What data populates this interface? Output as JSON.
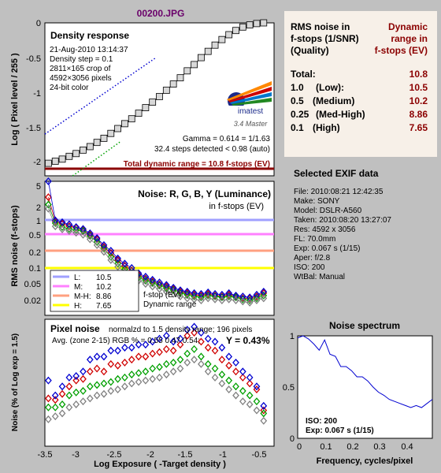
{
  "figure_title": "00200.JPG",
  "colors": {
    "background": "#c0c0c0",
    "plot_bg": "#ffffff",
    "title": "#6a006a",
    "dark_red": "#8b0000",
    "red": "#d00000",
    "green": "#00a000",
    "blue": "#0000d0",
    "gray": "#808080",
    "lum_L": "#a0a0ff",
    "lum_M": "#ff80ff",
    "lum_MH": "#ffa080",
    "lum_H": "#ffff00"
  },
  "density_panel": {
    "title": "Density response",
    "info_lines": [
      "21-Aug-2010 13:14:37",
      "Density step = 0.1",
      "2811×165 crop of",
      "4592×3056 pixels",
      "24-bit color"
    ],
    "logo": {
      "brand": "imatest",
      "version": "3.4  Master"
    },
    "gamma_text": "Gamma = 0.614 = 1/1.63",
    "steps_text": "32.4 steps detected < 0.98 (auto)",
    "dynamic_range_text": "Total dynamic range = 10.8 f-stops (EV)",
    "ylabel": "Log ( Pixel level / 255 )",
    "yticks": [
      "0",
      "-0.5",
      "-1",
      "-1.5",
      "-2"
    ]
  },
  "noise_panel": {
    "title": "Noise: R, G, B, Y (Luminance)",
    "subtitle": "in f-stops (EV)",
    "ylabel": "RMS noise (f-stops)",
    "yticks": [
      "5",
      "2",
      "1",
      "0.5",
      "0.2",
      "0.1",
      "0.05",
      "0.02"
    ],
    "legend": [
      {
        "key": "L:",
        "value": "10.5"
      },
      {
        "key": "M:",
        "value": "10.2"
      },
      {
        "key": "M-H:",
        "value": "8.86"
      },
      {
        "key": "H:",
        "value": "7.65"
      }
    ],
    "legend_note_1": "f-stop (EV)",
    "legend_note_2": "Dynamic range"
  },
  "pixel_noise_panel": {
    "title": "Pixel noise",
    "subtitle": "normalzd to 1.5 density range; 196 pixels",
    "avg_text": "Avg. (zone 2-15) RGB % = 0.55  0.47  0.54;",
    "y_text": "Y = 0.43%",
    "ylabel": "Noise (% of Log exp = 1.5)",
    "xlabel": "Log Exposure ( -Target density )",
    "xticks": [
      "-3.5",
      "-3",
      "-2.5",
      "-2",
      "-1.5",
      "-1",
      "-0.5"
    ]
  },
  "dr_table": {
    "header_left": [
      "RMS noise in",
      "f-stops (1/SNR)",
      "(Quality)"
    ],
    "header_right": [
      "Dynamic",
      "range in",
      "f-stops (EV)"
    ],
    "rows": [
      {
        "q": "Total:",
        "label": "",
        "v": "10.8"
      },
      {
        "q": "1.0",
        "label": "(Low):",
        "v": "10.5"
      },
      {
        "q": "0.5",
        "label": "(Medium)",
        "v": "10.2"
      },
      {
        "q": "0.25",
        "label": "(Med-High)",
        "v": "8.86"
      },
      {
        "q": "0.1",
        "label": "(High)",
        "v": "7.65"
      }
    ]
  },
  "exif": {
    "title": "Selected EXIF data",
    "lines": [
      "File:  2010:08:21 12:42:35",
      "Make:  SONY",
      "Model: DSLR-A560",
      "Taken: 2010:08:20 13:27:07",
      "Res:   4592 x 3056",
      "FL:  70.0mm",
      "Exp:  0.067 s  (1/15)",
      "Aper:  f/2.8",
      "ISO:  200",
      "WtBal: Manual"
    ]
  },
  "spectrum_panel": {
    "title": "Noise spectrum",
    "xlabel": "Frequency, cycles/pixel",
    "xticks": [
      "0",
      "0.1",
      "0.2",
      "0.3",
      "0.4"
    ],
    "yticks": [
      "1",
      "0.5",
      "0"
    ],
    "iso_text": "ISO:  200",
    "exp_text": "Exp:  0.067 s  (1/15)"
  },
  "chart_data": [
    {
      "type": "line",
      "title": "Density response",
      "ylabel": "Log ( Pixel level / 255 )",
      "xlim": [
        -3.5,
        -0.2
      ],
      "ylim": [
        -2.2,
        0
      ],
      "x": [
        -3.45,
        -3.35,
        -3.25,
        -3.15,
        -3.05,
        -2.95,
        -2.85,
        -2.75,
        -2.65,
        -2.55,
        -2.45,
        -2.35,
        -2.25,
        -2.15,
        -2.05,
        -1.95,
        -1.85,
        -1.75,
        -1.65,
        -1.55,
        -1.45,
        -1.35,
        -1.25,
        -1.15,
        -1.05,
        -0.95,
        -0.85,
        -0.75,
        -0.65,
        -0.55,
        -0.45,
        -0.35
      ],
      "series": [
        {
          "y": [
            -2.02,
            -1.99,
            -1.96,
            -1.92,
            -1.88,
            -1.83,
            -1.78,
            -1.72,
            -1.66,
            -1.59,
            -1.52,
            -1.45,
            -1.38,
            -1.3,
            -1.22,
            -1.14,
            -1.06,
            -0.97,
            -0.88,
            -0.79,
            -0.69,
            -0.6,
            -0.5,
            -0.41,
            -0.32,
            -0.24,
            -0.17,
            -0.11,
            -0.06,
            -0.03,
            -0.01,
            0.0
          ]
        }
      ]
    },
    {
      "type": "line",
      "title": "Noise: R, G, B, Y (Luminance)",
      "ylabel": "RMS noise (f-stops)",
      "yscale": "log",
      "ylim": [
        0.01,
        5
      ],
      "x": [
        -3.45,
        -3.35,
        -3.25,
        -3.15,
        -3.05,
        -2.95,
        -2.85,
        -2.75,
        -2.65,
        -2.55,
        -2.45,
        -2.35,
        -2.25,
        -2.15,
        -2.05,
        -1.95,
        -1.85,
        -1.75,
        -1.65,
        -1.55,
        -1.45,
        -1.35,
        -1.25,
        -1.15,
        -1.05,
        -0.95,
        -0.85,
        -0.75,
        -0.65,
        -0.55,
        -0.45,
        -0.35
      ],
      "series": [
        {
          "name": "R",
          "y": [
            2.4,
            0.78,
            0.7,
            0.62,
            0.58,
            0.52,
            0.42,
            0.34,
            0.24,
            0.18,
            0.13,
            0.1,
            0.08,
            0.065,
            0.055,
            0.048,
            0.042,
            0.038,
            0.034,
            0.03,
            0.028,
            0.026,
            0.025,
            0.027,
            0.025,
            0.024,
            0.026,
            0.024,
            0.022,
            0.022,
            0.024,
            0.028
          ]
        },
        {
          "name": "G",
          "y": [
            1.7,
            0.72,
            0.6,
            0.55,
            0.52,
            0.5,
            0.4,
            0.3,
            0.22,
            0.15,
            0.11,
            0.085,
            0.07,
            0.058,
            0.05,
            0.045,
            0.04,
            0.035,
            0.032,
            0.028,
            0.026,
            0.024,
            0.023,
            0.025,
            0.024,
            0.023,
            0.024,
            0.023,
            0.021,
            0.02,
            0.022,
            0.025
          ]
        },
        {
          "name": "B",
          "y": [
            5.0,
            0.82,
            0.75,
            0.68,
            0.6,
            0.55,
            0.45,
            0.36,
            0.26,
            0.2,
            0.14,
            0.11,
            0.09,
            0.07,
            0.06,
            0.052,
            0.046,
            0.041,
            0.036,
            0.032,
            0.03,
            0.028,
            0.027,
            0.029,
            0.027,
            0.026,
            0.028,
            0.025,
            0.024,
            0.023,
            0.026,
            0.03
          ]
        },
        {
          "name": "Y",
          "y": [
            1.4,
            0.62,
            0.54,
            0.5,
            0.46,
            0.42,
            0.34,
            0.26,
            0.19,
            0.13,
            0.095,
            0.075,
            0.06,
            0.05,
            0.043,
            0.038,
            0.034,
            0.03,
            0.027,
            0.024,
            0.022,
            0.021,
            0.02,
            0.022,
            0.021,
            0.02,
            0.021,
            0.02,
            0.019,
            0.018,
            0.02,
            0.022
          ]
        }
      ]
    },
    {
      "type": "line",
      "title": "Pixel noise",
      "xlabel": "Log Exposure ( -Target density )",
      "ylabel": "Noise (% of Log exp = 1.5)",
      "xlim": [
        -3.5,
        -0.2
      ],
      "ylim": [
        0,
        0.85
      ],
      "x": [
        -3.45,
        -3.35,
        -3.25,
        -3.15,
        -3.05,
        -2.95,
        -2.85,
        -2.75,
        -2.65,
        -2.55,
        -2.45,
        -2.35,
        -2.25,
        -2.15,
        -2.05,
        -1.95,
        -1.85,
        -1.75,
        -1.65,
        -1.55,
        -1.45,
        -1.35,
        -1.25,
        -1.15,
        -1.05,
        -0.95,
        -0.85,
        -0.75,
        -0.65,
        -0.55,
        -0.45,
        -0.35
      ],
      "series": [
        {
          "name": "R",
          "y": [
            0.32,
            0.31,
            0.35,
            0.4,
            0.44,
            0.45,
            0.5,
            0.52,
            0.5,
            0.55,
            0.54,
            0.56,
            0.58,
            0.6,
            0.6,
            0.62,
            0.63,
            0.65,
            0.64,
            0.68,
            0.74,
            0.76,
            0.7,
            0.66,
            0.64,
            0.58,
            0.54,
            0.5,
            0.46,
            0.42,
            0.38,
            0.24
          ]
        },
        {
          "name": "G",
          "y": [
            0.26,
            0.26,
            0.28,
            0.34,
            0.36,
            0.37,
            0.4,
            0.41,
            0.42,
            0.43,
            0.45,
            0.46,
            0.48,
            0.49,
            0.5,
            0.52,
            0.53,
            0.55,
            0.56,
            0.58,
            0.62,
            0.65,
            0.6,
            0.55,
            0.52,
            0.48,
            0.44,
            0.4,
            0.37,
            0.34,
            0.3,
            0.22
          ]
        },
        {
          "name": "B",
          "y": [
            0.44,
            0.34,
            0.4,
            0.46,
            0.47,
            0.5,
            0.58,
            0.6,
            0.6,
            0.64,
            0.64,
            0.66,
            0.66,
            0.68,
            0.68,
            0.7,
            0.72,
            0.74,
            0.7,
            0.72,
            0.78,
            0.8,
            0.76,
            0.72,
            0.7,
            0.66,
            0.6,
            0.56,
            0.5,
            0.46,
            0.4,
            0.27
          ]
        },
        {
          "name": "Y",
          "y": [
            0.18,
            0.2,
            0.22,
            0.26,
            0.28,
            0.3,
            0.32,
            0.34,
            0.35,
            0.37,
            0.38,
            0.4,
            0.42,
            0.43,
            0.44,
            0.45,
            0.46,
            0.48,
            0.5,
            0.52,
            0.56,
            0.58,
            0.55,
            0.5,
            0.46,
            0.42,
            0.38,
            0.34,
            0.3,
            0.28,
            0.24,
            0.17
          ]
        }
      ]
    },
    {
      "type": "line",
      "title": "Noise spectrum",
      "xlabel": "Frequency, cycles/pixel",
      "xlim": [
        0,
        0.5
      ],
      "ylim": [
        0,
        1
      ],
      "x": [
        0,
        0.02,
        0.04,
        0.06,
        0.08,
        0.1,
        0.12,
        0.14,
        0.16,
        0.18,
        0.2,
        0.22,
        0.24,
        0.26,
        0.28,
        0.3,
        0.32,
        0.34,
        0.36,
        0.38,
        0.4,
        0.42,
        0.44,
        0.46,
        0.48,
        0.5
      ],
      "series": [
        {
          "y": [
            0.98,
            1.0,
            0.97,
            0.92,
            0.86,
            0.96,
            0.82,
            0.8,
            0.7,
            0.7,
            0.66,
            0.6,
            0.6,
            0.56,
            0.5,
            0.45,
            0.42,
            0.38,
            0.36,
            0.34,
            0.32,
            0.3,
            0.32,
            0.3,
            0.34,
            0.38
          ]
        }
      ]
    }
  ]
}
